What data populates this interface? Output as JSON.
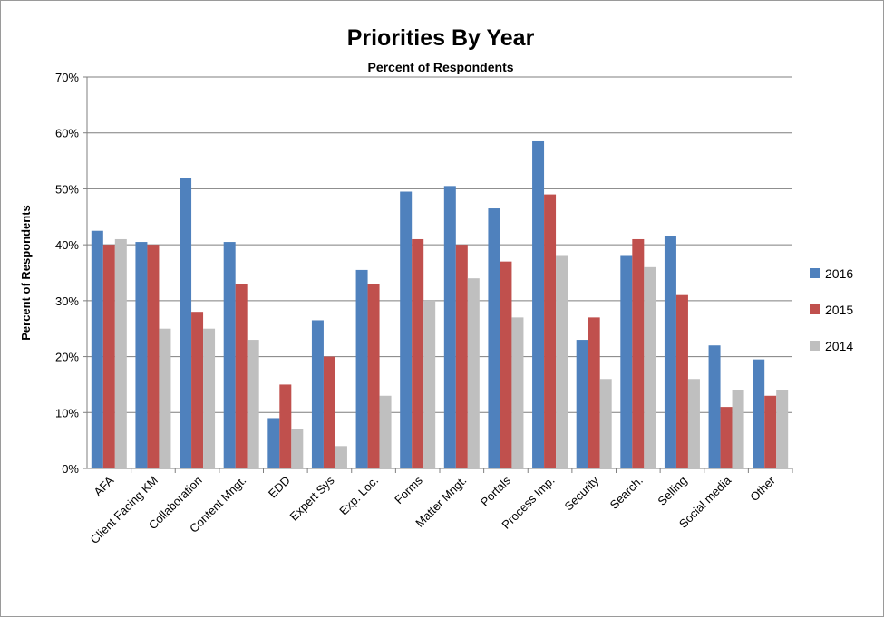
{
  "chart_data": {
    "type": "bar",
    "title": "Priorities  By Year",
    "subtitle": "Percent of Respondents",
    "ylabel": "Percent of Respondents",
    "xlabel": "",
    "ylim": [
      0,
      70
    ],
    "yticks": [
      "0%",
      "10%",
      "20%",
      "30%",
      "40%",
      "50%",
      "60%",
      "70%"
    ],
    "grid": "horizontal",
    "legend_position": "right",
    "categories": [
      "AFA",
      "Client Facing KM",
      "Collaboration",
      "Content Mngt.",
      "EDD",
      "Expert Sys",
      "Exp. Loc.",
      "Forms",
      "Matter Mngt.",
      "Portals",
      "Process Imp.",
      "Security",
      "Search.",
      "Selling",
      "Social media",
      "Other"
    ],
    "series": [
      {
        "name": "2016",
        "color": "#4F81BD",
        "values": [
          42.5,
          40.5,
          52,
          40.5,
          9,
          26.5,
          35.5,
          49.5,
          50.5,
          46.5,
          58.5,
          23,
          38,
          41.5,
          22,
          19.5
        ]
      },
      {
        "name": "2015",
        "color": "#C0504D",
        "values": [
          40,
          40,
          28,
          33,
          15,
          20,
          33,
          41,
          40,
          37,
          49,
          27,
          41,
          31,
          11,
          13
        ]
      },
      {
        "name": "2014",
        "color": "#BFBFBF",
        "values": [
          41,
          25,
          25,
          23,
          7,
          4,
          13,
          30,
          34,
          27,
          38,
          16,
          36,
          16,
          14,
          14
        ]
      }
    ]
  }
}
